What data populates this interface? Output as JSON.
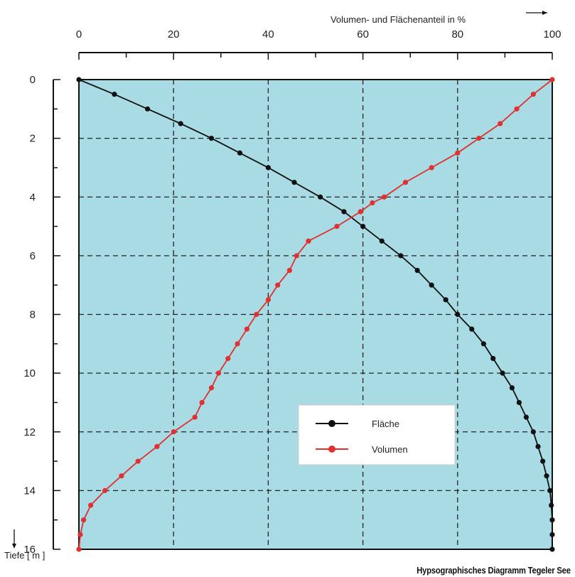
{
  "caption": "Hypsographisches Diagramm Tegeler See",
  "chart_data": {
    "type": "line",
    "title": "",
    "xlabel": "Volumen- und Flächenanteil in %",
    "ylabel": "Tiefe [ m ]",
    "xlim": [
      0,
      100
    ],
    "ylim": [
      0,
      16
    ],
    "y_inverted": true,
    "x_axis_position": "top",
    "x_ticks": [
      "0",
      "20",
      "40",
      "60",
      "80",
      "100"
    ],
    "y_ticks": [
      "0",
      "2",
      "4",
      "6",
      "8",
      "10",
      "12",
      "14",
      "16"
    ],
    "grid": true,
    "legend_position": "lower-right",
    "background_color": "#a9dbe5",
    "series": [
      {
        "name": "Fläche",
        "color": "#111111",
        "points": [
          [
            0,
            0
          ],
          [
            7.5,
            0.5
          ],
          [
            14.5,
            1
          ],
          [
            21.5,
            1.5
          ],
          [
            28,
            2
          ],
          [
            34,
            2.5
          ],
          [
            40,
            3
          ],
          [
            45.5,
            3.5
          ],
          [
            51,
            4
          ],
          [
            56,
            4.5
          ],
          [
            60,
            5
          ],
          [
            64,
            5.5
          ],
          [
            68,
            6
          ],
          [
            71.5,
            6.5
          ],
          [
            74.5,
            7
          ],
          [
            77.5,
            7.5
          ],
          [
            80,
            8
          ],
          [
            83,
            8.5
          ],
          [
            85.5,
            9
          ],
          [
            87.5,
            9.5
          ],
          [
            89.5,
            10
          ],
          [
            91.5,
            10.5
          ],
          [
            93,
            11
          ],
          [
            94.5,
            11.5
          ],
          [
            96,
            12
          ],
          [
            97,
            12.5
          ],
          [
            98,
            13
          ],
          [
            98.8,
            13.5
          ],
          [
            99.5,
            14
          ],
          [
            99.8,
            14.5
          ],
          [
            100,
            15
          ],
          [
            100,
            15.5
          ],
          [
            100,
            16
          ]
        ]
      },
      {
        "name": "Volumen",
        "color": "#e03030",
        "points": [
          [
            100,
            0
          ],
          [
            96,
            0.5
          ],
          [
            92.5,
            1
          ],
          [
            89,
            1.5
          ],
          [
            84.5,
            2
          ],
          [
            80,
            2.5
          ],
          [
            74.5,
            3
          ],
          [
            69,
            3.5
          ],
          [
            64.5,
            4
          ],
          [
            62,
            4.2
          ],
          [
            59.5,
            4.5
          ],
          [
            54.5,
            5
          ],
          [
            48.5,
            5.5
          ],
          [
            46,
            6
          ],
          [
            44.5,
            6.5
          ],
          [
            42,
            7
          ],
          [
            40,
            7.5
          ],
          [
            37.5,
            8
          ],
          [
            35.5,
            8.5
          ],
          [
            33.5,
            9
          ],
          [
            31.5,
            9.5
          ],
          [
            29.5,
            10
          ],
          [
            28,
            10.5
          ],
          [
            26,
            11
          ],
          [
            24.5,
            11.5
          ],
          [
            20,
            12
          ],
          [
            16.5,
            12.5
          ],
          [
            12.5,
            13
          ],
          [
            9,
            13.5
          ],
          [
            5.5,
            14
          ],
          [
            2.5,
            14.5
          ],
          [
            1,
            15
          ],
          [
            0.3,
            15.5
          ],
          [
            0,
            16
          ]
        ]
      }
    ]
  }
}
